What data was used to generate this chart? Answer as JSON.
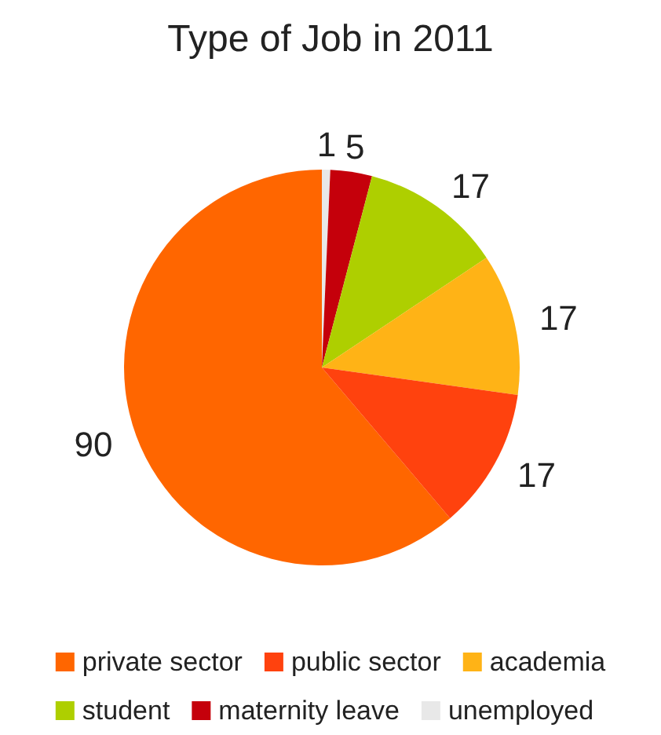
{
  "chart_data": {
    "type": "pie",
    "title": "Type of Job in 2011",
    "categories": [
      "private sector",
      "unemployed",
      "maternity leave",
      "student",
      "academia",
      "public sector"
    ],
    "values": [
      90,
      1,
      5,
      17,
      17,
      17
    ],
    "colors": [
      "#ff6600",
      "#e8e8e8",
      "#c5000b",
      "#aecf00",
      "#ffb316",
      "#ff420e"
    ],
    "data_labels": true,
    "legend": "bottom"
  }
}
